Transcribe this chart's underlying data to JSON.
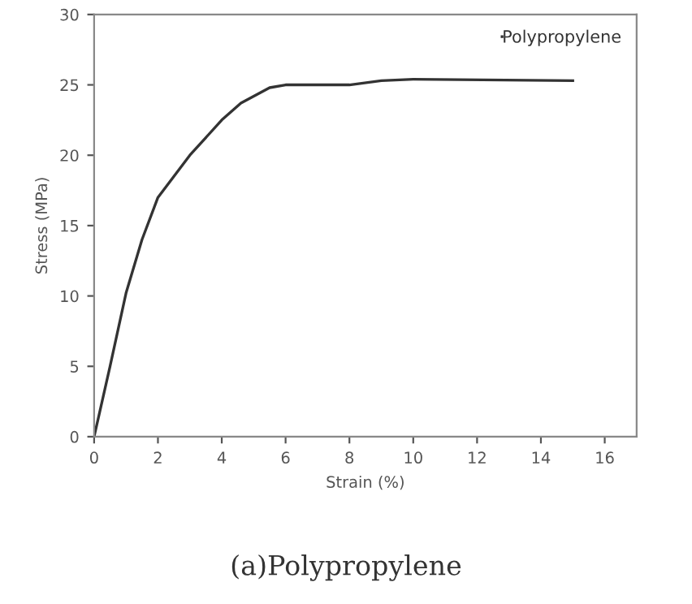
{
  "chart_data": {
    "type": "line",
    "xlabel": "Strain (%)",
    "ylabel": "Stress (MPa)",
    "x": [
      0,
      0.5,
      1,
      1.5,
      2,
      3,
      4,
      4.6,
      5.5,
      6,
      8,
      9,
      10,
      15
    ],
    "series": [
      {
        "name": "Polypropylene",
        "color": "#333333",
        "values": [
          0,
          5,
          10.2,
          14,
          17,
          20,
          22.5,
          23.7,
          24.8,
          25,
          25,
          25.3,
          25.4,
          25.3
        ]
      }
    ],
    "xlim": [
      0,
      17
    ],
    "xticks": [
      0,
      2,
      4,
      6,
      8,
      10,
      12,
      14,
      16
    ],
    "ylim": [
      0,
      30
    ],
    "yticks": [
      0,
      5,
      10,
      15,
      20,
      25,
      30
    ],
    "grid": false,
    "legend": "top right",
    "marker": "none",
    "line_style": "solid",
    "annotations": [
      "(a)Polypropylene"
    ]
  }
}
